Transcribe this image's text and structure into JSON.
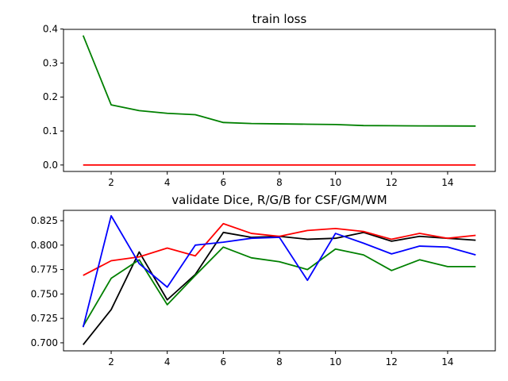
{
  "chart_data": [
    {
      "type": "line",
      "title": "train loss",
      "xlabel": "",
      "ylabel": "",
      "xlim": [
        0.3,
        15.7
      ],
      "ylim": [
        -0.019,
        0.399
      ],
      "xticks": [
        2,
        4,
        6,
        8,
        10,
        12,
        14
      ],
      "yticks": [
        0.0,
        0.1,
        0.2,
        0.3,
        0.4
      ],
      "ytick_labels": [
        "0.0",
        "0.1",
        "0.2",
        "0.3",
        "0.4"
      ],
      "grid": false,
      "legend": "none",
      "x": [
        1,
        2,
        3,
        4,
        5,
        6,
        7,
        8,
        9,
        10,
        11,
        12,
        13,
        14,
        15
      ],
      "series": [
        {
          "color": "#ff0000",
          "values": [
            0.0,
            0.0,
            0.0,
            0.0,
            0.0,
            0.0,
            0.0,
            0.0,
            0.0,
            0.0,
            0.0,
            0.0,
            0.0,
            0.0,
            0.0
          ]
        },
        {
          "color": "#008000",
          "values": [
            0.381,
            0.177,
            0.16,
            0.152,
            0.148,
            0.125,
            0.122,
            0.121,
            0.12,
            0.119,
            0.116,
            0.1155,
            0.115,
            0.1148,
            0.1145
          ]
        }
      ]
    },
    {
      "type": "line",
      "title": "validate Dice, R/G/B for CSF/GM/WM",
      "xlabel": "",
      "ylabel": "",
      "xlim": [
        0.3,
        15.7
      ],
      "ylim": [
        0.6918,
        0.8356
      ],
      "xticks": [
        2,
        4,
        6,
        8,
        10,
        12,
        14
      ],
      "yticks": [
        0.7,
        0.725,
        0.75,
        0.775,
        0.8,
        0.825
      ],
      "ytick_labels": [
        "0.700",
        "0.725",
        "0.750",
        "0.775",
        "0.800",
        "0.825"
      ],
      "grid": false,
      "legend": "none",
      "x": [
        1,
        2,
        3,
        4,
        5,
        6,
        7,
        8,
        9,
        10,
        11,
        12,
        13,
        14,
        15
      ],
      "series": [
        {
          "color": "#000000",
          "values": [
            0.698,
            0.734,
            0.793,
            0.744,
            0.77,
            0.813,
            0.808,
            0.809,
            0.806,
            0.807,
            0.813,
            0.804,
            0.809,
            0.807,
            0.805
          ]
        },
        {
          "color": "#ff0000",
          "values": [
            0.769,
            0.784,
            0.788,
            0.797,
            0.789,
            0.822,
            0.812,
            0.809,
            0.815,
            0.817,
            0.814,
            0.806,
            0.812,
            0.807,
            0.81
          ]
        },
        {
          "color": "#008000",
          "values": [
            0.717,
            0.766,
            0.785,
            0.739,
            0.769,
            0.798,
            0.787,
            0.783,
            0.775,
            0.796,
            0.79,
            0.774,
            0.785,
            0.778,
            0.778
          ]
        },
        {
          "color": "#0000ff",
          "values": [
            0.716,
            0.83,
            0.781,
            0.757,
            0.8,
            0.803,
            0.807,
            0.808,
            0.764,
            0.812,
            0.802,
            0.791,
            0.799,
            0.798,
            0.79
          ]
        }
      ]
    }
  ]
}
